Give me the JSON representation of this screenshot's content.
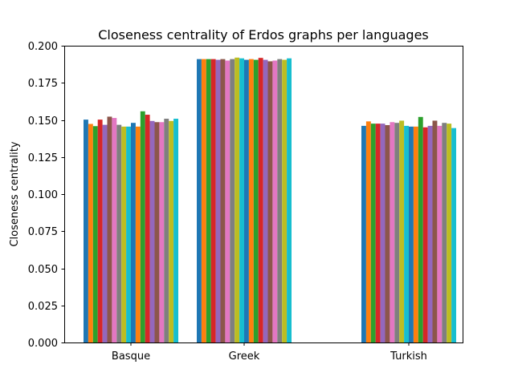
{
  "chart_data": {
    "type": "bar",
    "title": "Closeness centrality of Erdos graphs per languages",
    "xlabel": "",
    "ylabel": "Closeness centrality",
    "ylim": [
      0,
      0.2
    ],
    "yticks": [
      "0.000",
      "0.025",
      "0.050",
      "0.075",
      "0.100",
      "0.125",
      "0.150",
      "0.175",
      "0.200"
    ],
    "grid": false,
    "categories": [
      "Basque",
      "Greek",
      "Turkish"
    ],
    "colors": [
      "#1f77b4",
      "#ff7f0e",
      "#2ca02c",
      "#d62728",
      "#9467bd",
      "#8c564b",
      "#e377c2",
      "#7f7f7f",
      "#bcbd22",
      "#17becf"
    ],
    "values": [
      [
        0.1502,
        0.1473,
        0.1458,
        0.1502,
        0.1467,
        0.1522,
        0.1513,
        0.1467,
        0.1455,
        0.1455,
        0.148,
        0.1455,
        0.1558,
        0.1535,
        0.1493,
        0.1485,
        0.1485,
        0.1508,
        0.1493,
        0.1508
      ],
      [
        0.191,
        0.191,
        0.191,
        0.191,
        0.1905,
        0.191,
        0.19,
        0.191,
        0.192,
        0.1915,
        0.1905,
        0.191,
        0.1905,
        0.1918,
        0.1905,
        0.1895,
        0.19,
        0.191,
        0.1905,
        0.1915
      ],
      [
        0.146,
        0.149,
        0.1475,
        0.1475,
        0.1475,
        0.1465,
        0.1485,
        0.148,
        0.1495,
        0.146,
        0.1455,
        0.1455,
        0.152,
        0.145,
        0.146,
        0.1495,
        0.146,
        0.148,
        0.1475,
        0.1445
      ]
    ]
  }
}
